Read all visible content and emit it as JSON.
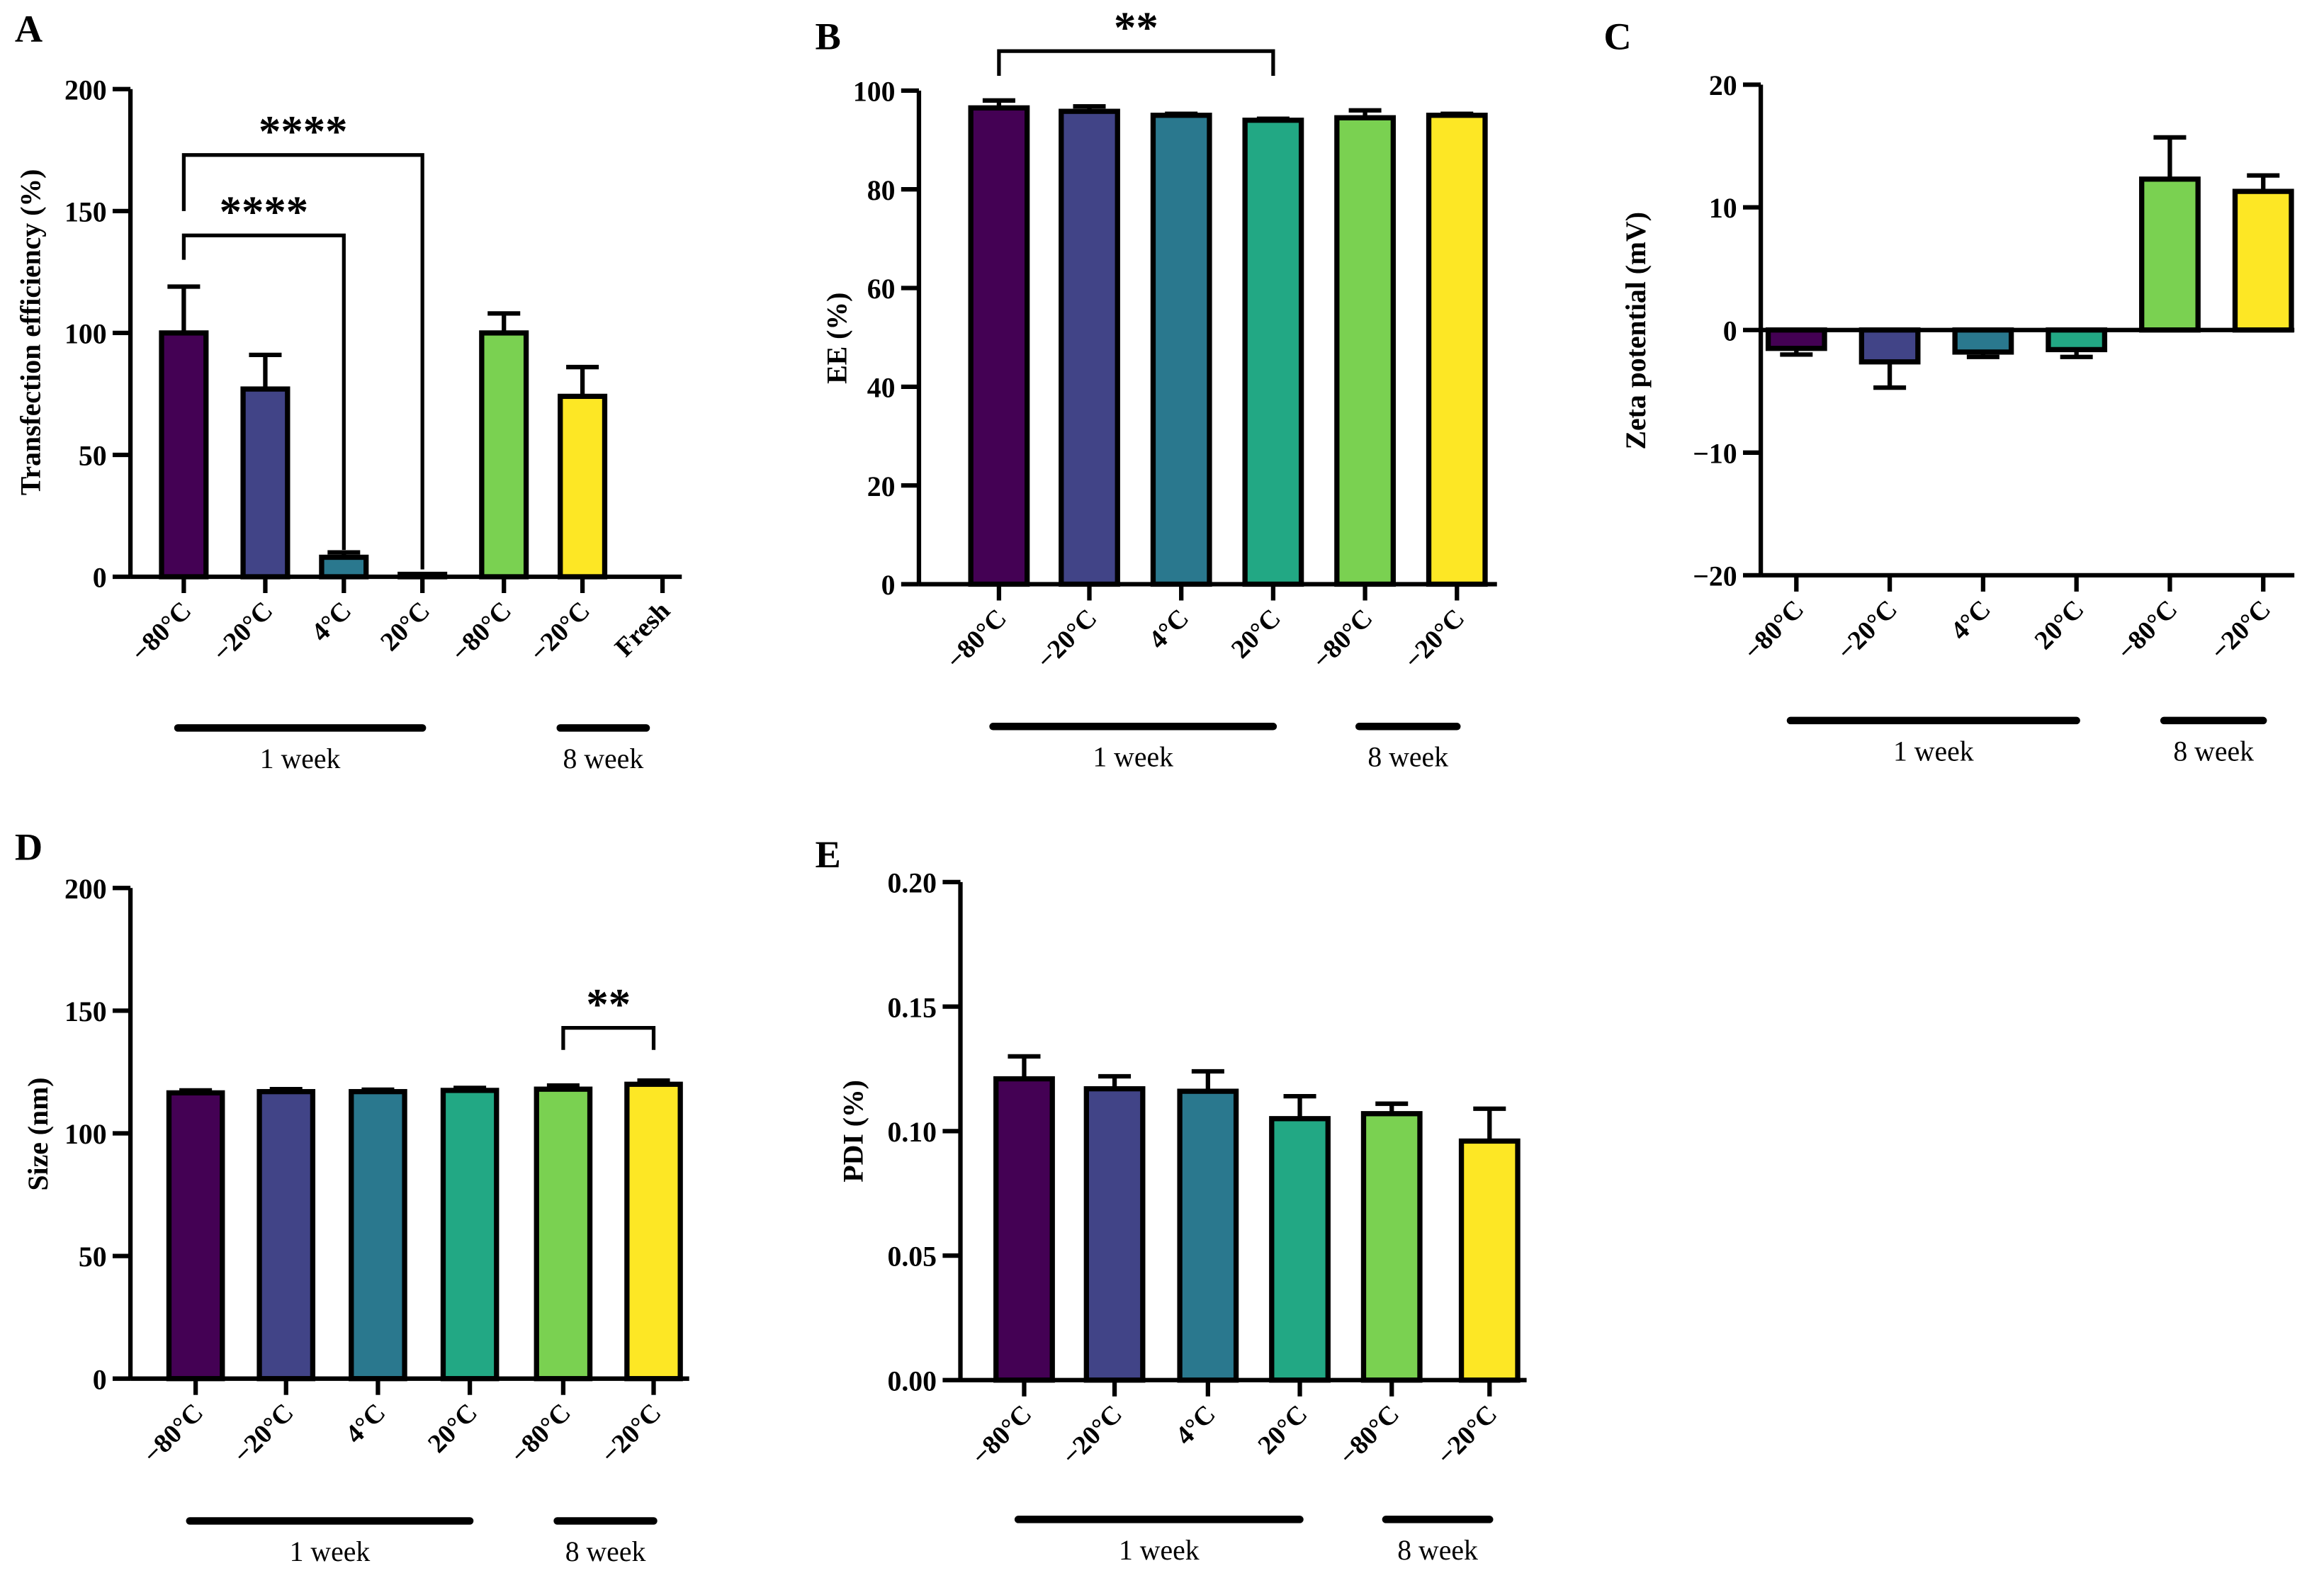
{
  "colors": [
    "#440154",
    "#414487",
    "#2A788E",
    "#22A884",
    "#7AD151",
    "#FDE725"
  ],
  "chart_data": [
    {
      "panel": "A",
      "type": "bar",
      "ylabel": "Transfection efficiency (%)",
      "ylim": [
        0,
        200
      ],
      "yticks": [
        0,
        50,
        100,
        150,
        200
      ],
      "categories": [
        "−80°C",
        "−20°C",
        "4°C",
        "20°C",
        "−80°C",
        "−20°C",
        "Fresh"
      ],
      "values": [
        100,
        77,
        8,
        1,
        100,
        74,
        0
      ],
      "errors": [
        19,
        14,
        2,
        0,
        8,
        12,
        0
      ],
      "groups": [
        {
          "label": "1 week",
          "from": 0,
          "to": 3
        },
        {
          "label": "8 week",
          "from": 5,
          "to": 5
        }
      ],
      "significance": [
        {
          "label": "****",
          "from": 0,
          "to": 2,
          "level": 140,
          "left_end": 130,
          "right_end": 11
        },
        {
          "label": "****",
          "from": 0,
          "to": 3,
          "level": 173,
          "left_end": 150,
          "right_end": 3
        }
      ]
    },
    {
      "panel": "B",
      "type": "bar",
      "ylabel": "EE (%)",
      "ylim": [
        0,
        100
      ],
      "yticks": [
        0,
        20,
        40,
        60,
        80,
        100
      ],
      "categories": [
        "−80°C",
        "−20°C",
        "4°C",
        "20°C",
        "−80°C",
        "−20°C"
      ],
      "values": [
        96.5,
        95.8,
        95,
        94,
        94.5,
        95
      ],
      "errors": [
        1.5,
        1,
        0.3,
        0.3,
        1.5,
        0.3
      ],
      "groups": [
        {
          "label": "1 week",
          "from": 0,
          "to": 3
        },
        {
          "label": "8 week",
          "from": 4,
          "to": 5
        }
      ],
      "significance": [
        {
          "label": "**",
          "from": 0,
          "to": 3,
          "level": 108,
          "left_end": 103,
          "right_end": 103
        }
      ]
    },
    {
      "panel": "C",
      "type": "bar",
      "ylabel": "Zeta potential (mV)",
      "ylim": [
        -20,
        20
      ],
      "yticks": [
        -20,
        -10,
        0,
        10,
        20
      ],
      "ytick_labels": [
        "−20",
        "−10",
        "0",
        "10",
        "20"
      ],
      "categories": [
        "−80°C",
        "−20°C",
        "4°C",
        "20°C",
        "−80°C",
        "−20°C"
      ],
      "values": [
        -1.5,
        -2.6,
        -1.8,
        -1.6,
        12.3,
        11.3
      ],
      "errors": [
        0.5,
        2.1,
        0.4,
        0.6,
        3.4,
        1.3
      ],
      "groups": [
        {
          "label": "1 week",
          "from": 0,
          "to": 3
        },
        {
          "label": "8 week",
          "from": 4,
          "to": 5
        }
      ],
      "significance": []
    },
    {
      "panel": "D",
      "type": "bar",
      "ylabel": "Size (nm)",
      "ylim": [
        0,
        200
      ],
      "yticks": [
        0,
        50,
        100,
        150,
        200
      ],
      "categories": [
        "−80°C",
        "−20°C",
        "4°C",
        "20°C",
        "−80°C",
        "−20°C"
      ],
      "values": [
        116.5,
        117,
        117,
        117.5,
        118,
        120
      ],
      "errors": [
        1,
        1,
        0.8,
        1,
        1.5,
        1.5
      ],
      "groups": [
        {
          "label": "1 week",
          "from": 0,
          "to": 3
        },
        {
          "label": "8 week",
          "from": 4,
          "to": 5
        }
      ],
      "significance": [
        {
          "label": "**",
          "from": 4,
          "to": 5,
          "level": 143,
          "left_end": 134,
          "right_end": 134
        }
      ]
    },
    {
      "panel": "E",
      "type": "bar",
      "ylabel": "PDI (%)",
      "ylim": [
        0,
        0.2
      ],
      "yticks": [
        0,
        0.05,
        0.1,
        0.15,
        0.2
      ],
      "ytick_labels": [
        "0.00",
        "0.05",
        "0.10",
        "0.15",
        "0.20"
      ],
      "categories": [
        "−80°C",
        "−20°C",
        "4°C",
        "20°C",
        "−80°C",
        "−20°C"
      ],
      "values": [
        0.121,
        0.117,
        0.116,
        0.105,
        0.107,
        0.096
      ],
      "errors": [
        0.009,
        0.005,
        0.008,
        0.009,
        0.004,
        0.013
      ],
      "groups": [
        {
          "label": "1 week",
          "from": 0,
          "to": 3
        },
        {
          "label": "8 week",
          "from": 4,
          "to": 5
        }
      ],
      "significance": []
    }
  ]
}
